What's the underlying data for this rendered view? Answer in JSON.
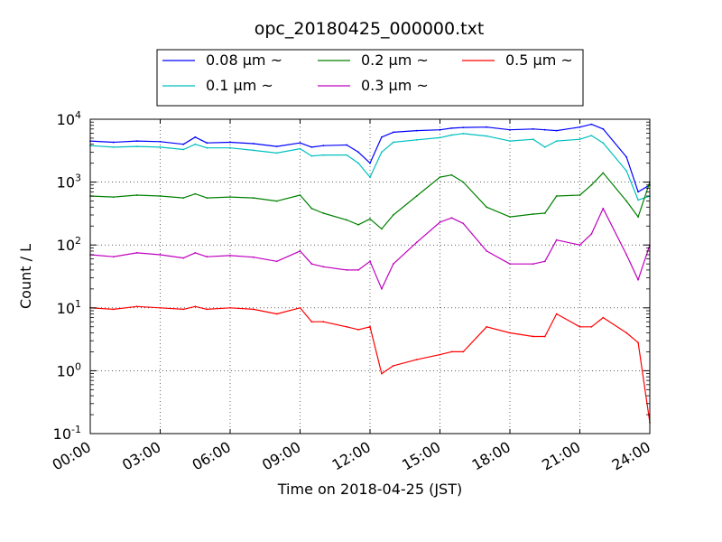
{
  "chart_data": {
    "type": "line",
    "title": "opc_20180425_000000.txt",
    "xlabel": "Time on 2018-04-25 (JST)",
    "ylabel": "Count / L",
    "yscale": "log",
    "ylim": [
      0.1,
      10000
    ],
    "grid": true,
    "legend_position": "top-center",
    "x_ticks": [
      "00:00",
      "03:00",
      "06:00",
      "09:00",
      "12:00",
      "15:00",
      "18:00",
      "21:00",
      "24:00"
    ],
    "y_ticks": [
      {
        "base": "10",
        "exp": "-1"
      },
      {
        "base": "10",
        "exp": "0"
      },
      {
        "base": "10",
        "exp": "1"
      },
      {
        "base": "10",
        "exp": "2"
      },
      {
        "base": "10",
        "exp": "3"
      },
      {
        "base": "10",
        "exp": "4"
      }
    ],
    "x": [
      "00:00",
      "01:00",
      "02:00",
      "03:00",
      "04:00",
      "04:30",
      "05:00",
      "06:00",
      "07:00",
      "08:00",
      "09:00",
      "09:30",
      "10:00",
      "11:00",
      "11:30",
      "12:00",
      "12:30",
      "13:00",
      "14:00",
      "15:00",
      "15:30",
      "16:00",
      "17:00",
      "18:00",
      "19:00",
      "19:30",
      "20:00",
      "21:00",
      "21:30",
      "22:00",
      "23:00",
      "23:30",
      "24:00"
    ],
    "series": [
      {
        "name": "0.08 μm ~",
        "color": "#0000ff",
        "values": [
          4500,
          4300,
          4500,
          4400,
          4000,
          5200,
          4200,
          4300,
          4100,
          3700,
          4200,
          3600,
          3800,
          3900,
          3000,
          2000,
          5200,
          6200,
          6600,
          6800,
          7200,
          7400,
          7500,
          6800,
          7000,
          6800,
          6600,
          7500,
          8300,
          7000,
          2500,
          700,
          900
        ]
      },
      {
        "name": "0.1 μm ~",
        "color": "#00bfbf",
        "values": [
          3800,
          3600,
          3700,
          3600,
          3300,
          4000,
          3500,
          3500,
          3200,
          2900,
          3400,
          2600,
          2700,
          2700,
          2000,
          1200,
          3000,
          4300,
          4700,
          5100,
          5600,
          5900,
          5400,
          4500,
          4800,
          3600,
          4500,
          4800,
          5500,
          4200,
          1500,
          520,
          600
        ]
      },
      {
        "name": "0.2 μm ~",
        "color": "#008000",
        "values": [
          600,
          580,
          620,
          600,
          560,
          650,
          560,
          580,
          560,
          500,
          620,
          380,
          320,
          250,
          210,
          260,
          180,
          300,
          600,
          1200,
          1300,
          1000,
          400,
          280,
          310,
          320,
          600,
          620,
          900,
          1400,
          500,
          280,
          1000
        ]
      },
      {
        "name": "0.3 μm ~",
        "color": "#bf00bf",
        "values": [
          70,
          65,
          75,
          70,
          62,
          75,
          65,
          68,
          64,
          55,
          80,
          50,
          45,
          40,
          40,
          55,
          20,
          50,
          110,
          230,
          270,
          220,
          80,
          50,
          50,
          55,
          120,
          100,
          150,
          380,
          70,
          28,
          100
        ]
      },
      {
        "name": "0.5 μm ~",
        "color": "#ff0000",
        "values": [
          10,
          9.5,
          10.5,
          10,
          9.5,
          10.5,
          9.5,
          10,
          9.5,
          8,
          10,
          6,
          6,
          5,
          4.5,
          5,
          0.9,
          1.2,
          1.5,
          1.8,
          2,
          2,
          5,
          4,
          3.5,
          3.5,
          8,
          5,
          5,
          7,
          4,
          2.8,
          0.15
        ]
      }
    ]
  }
}
